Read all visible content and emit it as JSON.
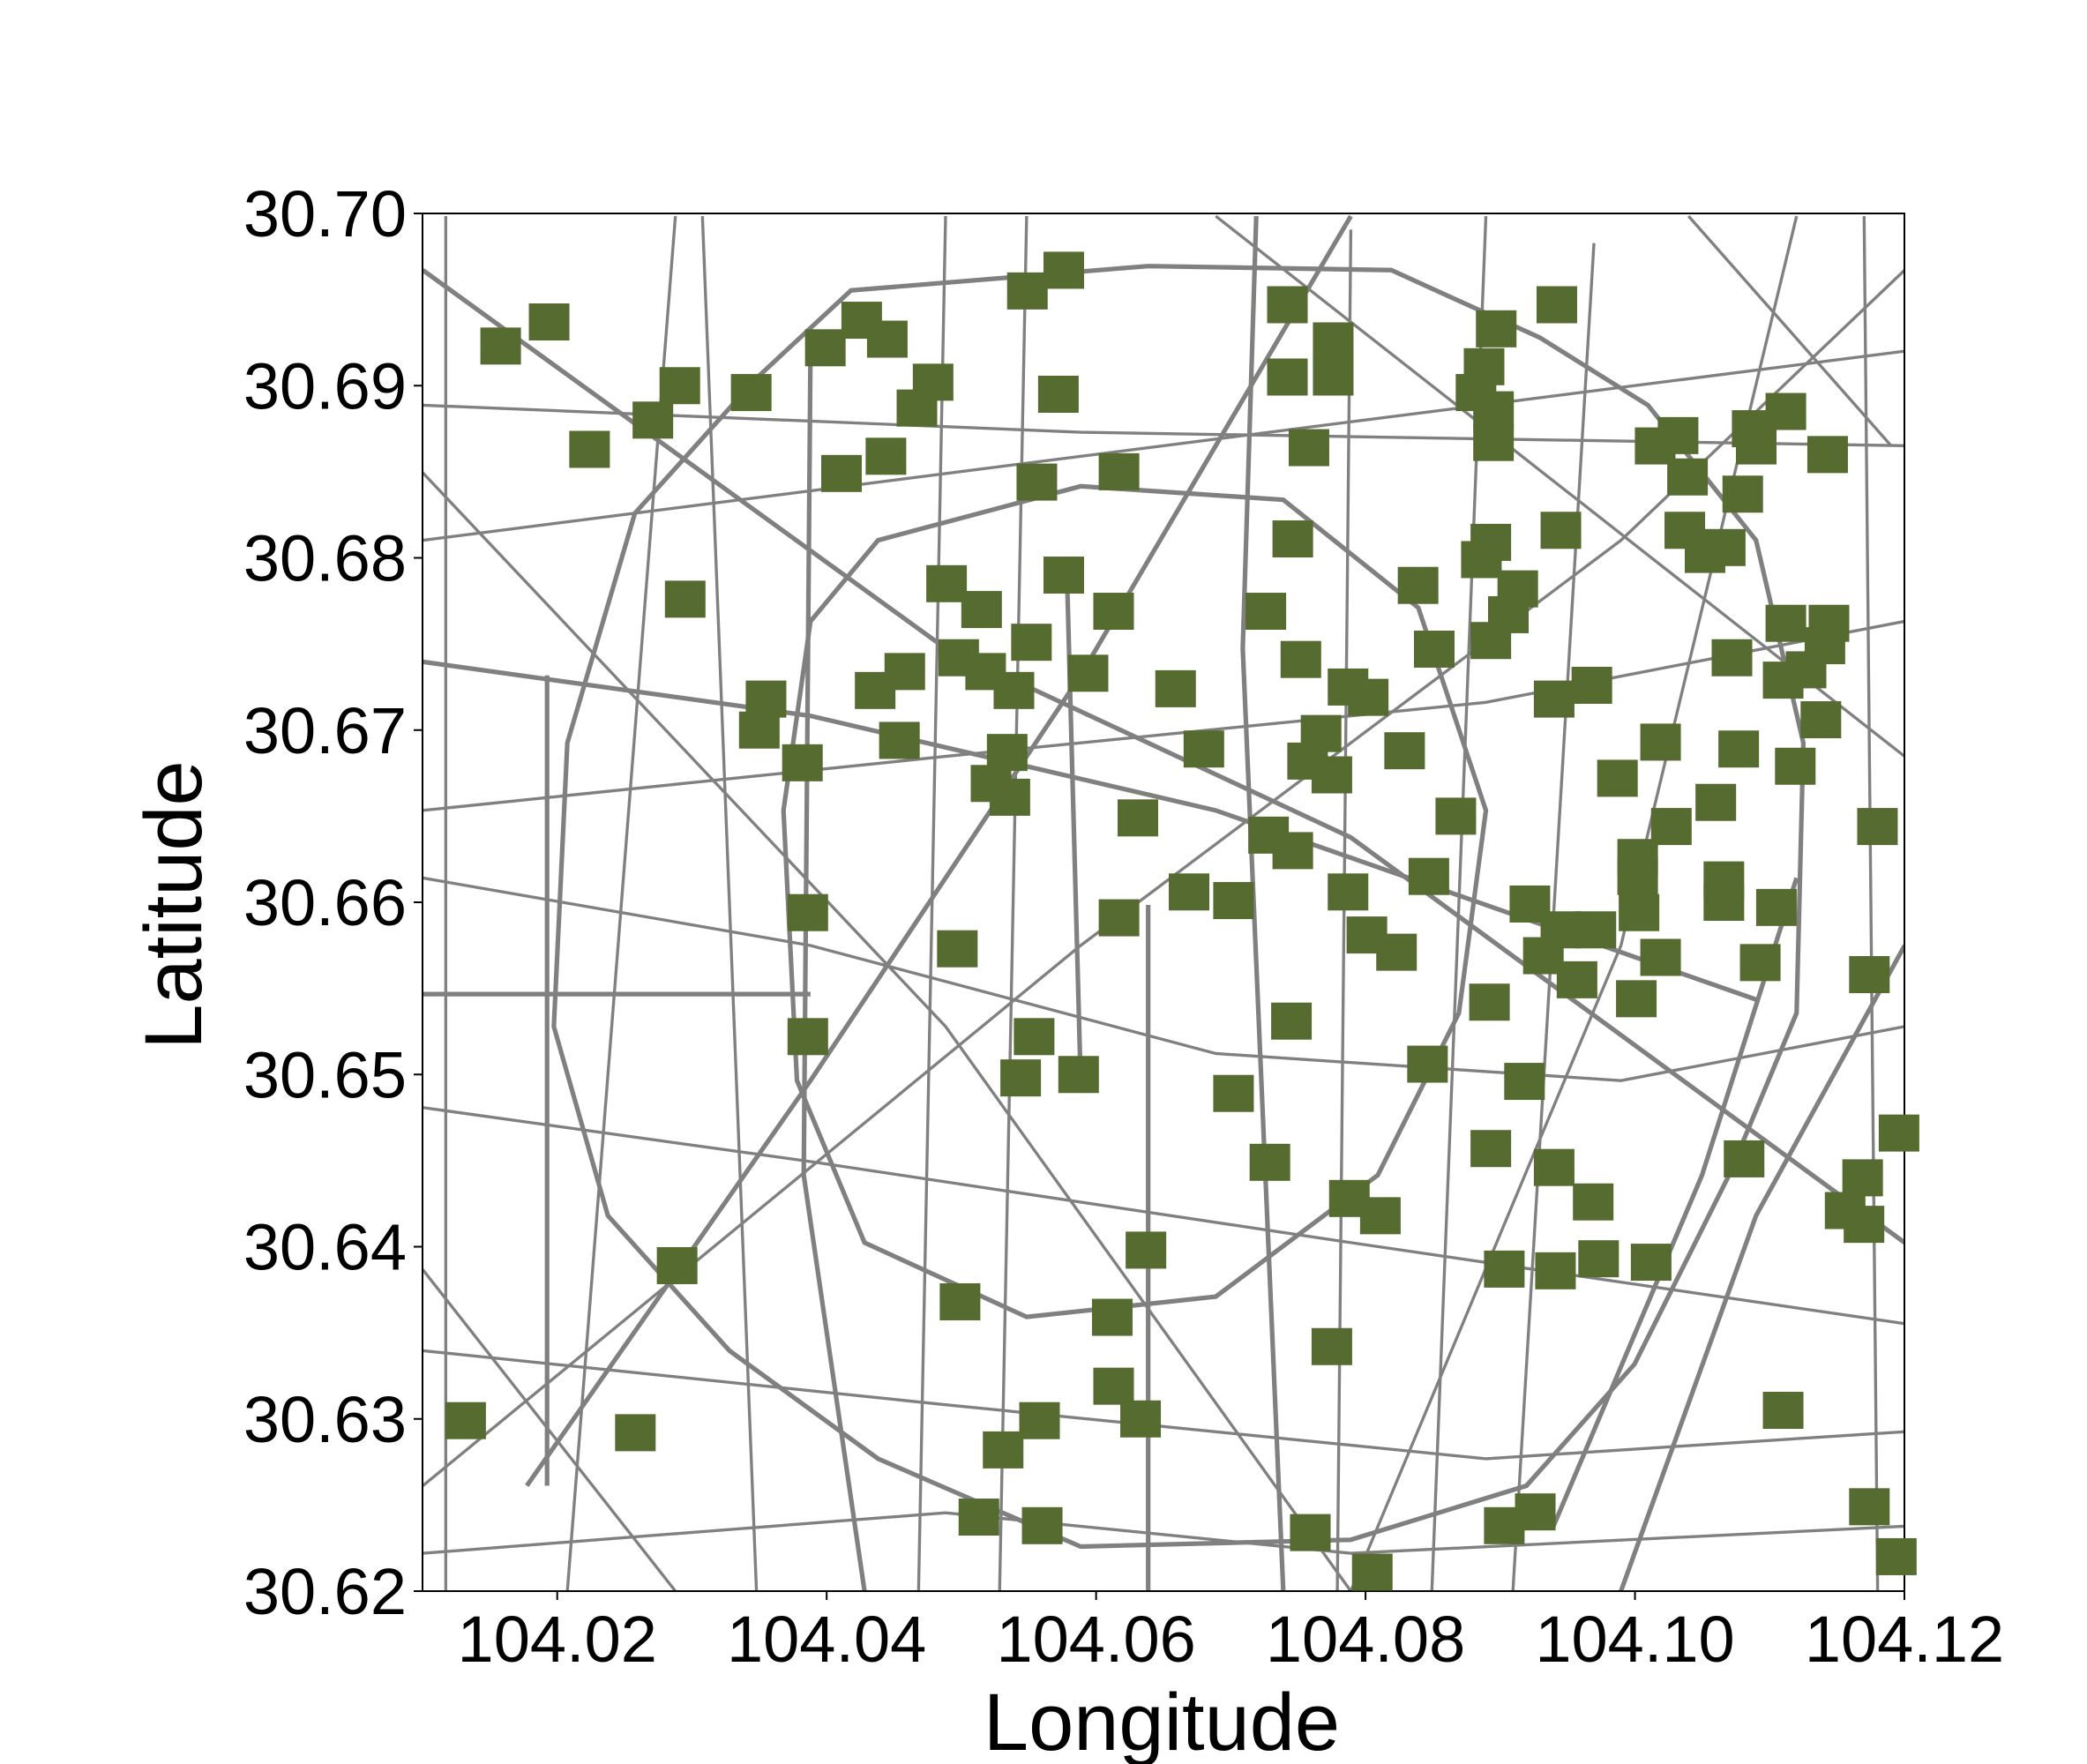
{
  "chart_data": {
    "type": "scatter",
    "xlabel": "Longitude",
    "ylabel": "Latitude",
    "color": "#556b2f",
    "marker": "square",
    "xlim": [
      104.01,
      104.12
    ],
    "ylim": [
      30.62,
      30.7
    ],
    "xticks": [
      104.02,
      104.04,
      104.06,
      104.08,
      {
        "value": 104.1,
        "label": "104.10"
      },
      104.12
    ],
    "yticks": [
      30.62,
      30.63,
      30.64,
      30.65,
      30.66,
      30.67,
      30.68,
      30.69,
      {
        "value": 30.7,
        "label": "30.70"
      }
    ],
    "x": [
      104.0158,
      104.0194,
      104.0224,
      104.0271,
      104.0291,
      104.0295,
      104.0344,
      104.0355,
      104.035,
      104.0382,
      104.0399,
      104.0426,
      104.0445,
      104.0411,
      104.0444,
      104.0467,
      104.0479,
      104.0549,
      104.0576,
      104.0572,
      104.0556,
      104.0617,
      104.0489,
      104.0515,
      104.0576,
      104.0613,
      104.0552,
      104.0498,
      104.0518,
      104.0539,
      104.0458,
      104.0436,
      104.0454,
      104.0534,
      104.0522,
      104.0536,
      104.0594,
      104.0659,
      104.068,
      104.0631,
      104.0669,
      104.0702,
      104.0617,
      104.0386,
      104.0497,
      104.0386,
      104.0554,
      104.0544,
      104.0587,
      104.0702,
      104.0729,
      104.0637,
      104.0499,
      104.0612,
      104.0613,
      104.0633,
      104.0558,
      104.0531,
      104.0513,
      104.056,
      104.0289,
      104.0258,
      104.0132,
      104.0742,
      104.0742,
      104.0776,
      104.0776,
      104.0758,
      104.0746,
      104.0726,
      104.0752,
      104.0787,
      104.0802,
      104.0767,
      104.0757,
      104.0775,
      104.0728,
      104.0746,
      104.0829,
      104.0867,
      104.0847,
      104.0787,
      104.0801,
      104.0823,
      104.0745,
      104.0846,
      104.0788,
      104.0811,
      104.0775,
      104.0759,
      104.0805,
      104.0903,
      104.0941,
      104.0973,
      104.1012,
      104.0969,
      104.094,
      104.0893,
      104.0918,
      104.0892,
      104.0922,
      104.0932,
      104.0945,
      104.0957,
      104.0971,
      104.1003,
      104.1002,
      104.1002,
      104.1019,
      104.1001,
      104.1027,
      104.106,
      104.1066,
      104.1066,
      104.1105,
      104.1093,
      104.1077,
      104.1119,
      104.1019,
      104.0987,
      104.094,
      104.0968,
      104.0893,
      104.0906,
      104.0913,
      104.0886,
      104.0893,
      104.0945,
      104.0839,
      104.0851,
      104.0942,
      104.0897,
      104.0888,
      104.0882,
      104.0895,
      104.0895,
      104.1015,
      104.1032,
      104.1039,
      104.1037,
      104.1052,
      104.1067,
      104.108,
      104.1087,
      104.1112,
      104.109,
      104.1143,
      104.1112,
      104.1072,
      104.111,
      104.1127,
      104.1141,
      104.1144,
      104.1138,
      104.118,
      104.1174,
      104.1196,
      104.1169,
      104.1156,
      104.117,
      104.1081,
      104.111,
      104.1174,
      104.1194,
      104.0926,
      104.0903
    ],
    "y": [
      30.6923,
      30.6937,
      30.6863,
      30.688,
      30.69,
      30.6776,
      30.6896,
      30.6718,
      30.67,
      30.6681,
      30.6922,
      30.6938,
      30.6927,
      30.6849,
      30.6859,
      30.6887,
      30.6902,
      30.6955,
      30.6967,
      30.6895,
      30.6844,
      30.685,
      30.6785,
      30.677,
      30.679,
      30.6769,
      30.6751,
      30.6742,
      30.6734,
      30.6723,
      30.6734,
      30.6723,
      30.6694,
      30.6687,
      30.6669,
      30.6661,
      30.6733,
      30.6724,
      30.6689,
      30.6649,
      30.6606,
      30.6601,
      30.6591,
      30.6594,
      30.6573,
      30.6522,
      30.6522,
      30.6498,
      30.65,
      30.6489,
      30.6449,
      30.6398,
      30.6368,
      30.6359,
      30.6319,
      30.63,
      30.6299,
      30.6282,
      30.6243,
      30.6238,
      30.6389,
      30.6292,
      30.6299,
      30.6947,
      30.6905,
      30.6926,
      30.6905,
      30.6864,
      30.6811,
      30.6769,
      30.6741,
      30.6725,
      30.6719,
      30.6698,
      30.6682,
      30.6674,
      30.6639,
      30.663,
      30.6688,
      30.665,
      30.6615,
      30.6606,
      30.6581,
      30.6571,
      30.6531,
      30.6506,
      30.6428,
      30.6418,
      30.6342,
      30.6234,
      30.6211,
      30.6387,
      30.6386,
      30.6393,
      30.6391,
      30.6426,
      30.6446,
      30.6457,
      30.6496,
      30.6542,
      30.6599,
      30.6569,
      30.6584,
      30.6555,
      30.6584,
      30.6594,
      30.6615,
      30.6626,
      30.6568,
      30.6544,
      30.6644,
      30.6658,
      30.66,
      30.6613,
      30.6597,
      30.6565,
      30.6689,
      30.6679,
      30.6693,
      30.6672,
      30.6718,
      30.6726,
      30.6752,
      30.6767,
      30.6782,
      30.6799,
      30.6809,
      30.6816,
      30.6784,
      30.6747,
      30.6947,
      30.6933,
      30.6911,
      30.6896,
      30.6886,
      30.6867,
      30.6865,
      30.6871,
      30.6847,
      30.6816,
      30.6802,
      30.6806,
      30.6837,
      30.6875,
      30.6885,
      30.6865,
      30.686,
      30.6762,
      30.6742,
      30.6729,
      30.6735,
      30.6749,
      30.6762,
      30.6706,
      30.6644,
      30.6558,
      30.6466,
      30.644,
      30.6421,
      30.6413,
      30.6451,
      30.6305,
      30.6249,
      30.622,
      30.6246,
      30.6238
    ]
  }
}
